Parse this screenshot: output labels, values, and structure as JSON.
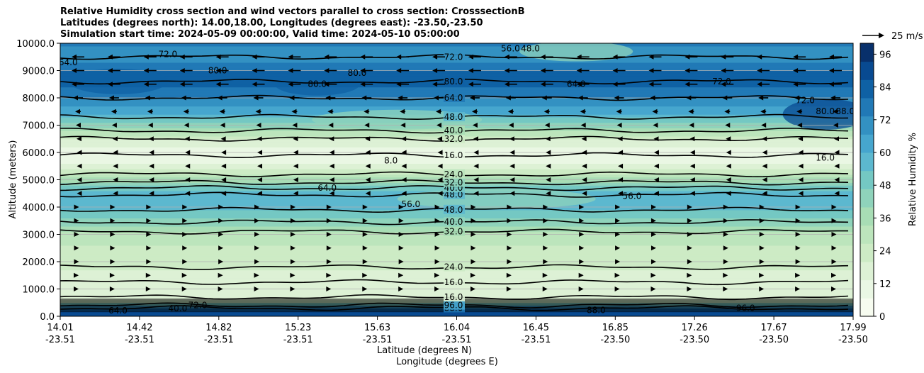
{
  "chart_data": {
    "type": "contour",
    "title_lines": [
      "Relative Humidity cross section and wind vectors parallel to cross section: CrosssectionB",
      "Latitudes (degrees north): 14.00,18.00, Longitudes (degrees east): -23.50,-23.50",
      "Simulation start time: 2024-05-09 00:00:00, Valid time: 2024-05-10 05:00:00"
    ],
    "ylabel": "Altitude (meters)",
    "xlabel_lat": "Latitude (degrees N)",
    "xlabel_lon": "Longitude (degrees E)",
    "ylim": [
      0,
      10000
    ],
    "y_ticks": [
      "0.0",
      "1000.0",
      "2000.0",
      "3000.0",
      "4000.0",
      "5000.0",
      "6000.0",
      "7000.0",
      "8000.0",
      "9000.0",
      "10000.0"
    ],
    "x_ticks": [
      {
        "lat": "14.01",
        "lon": "-23.51"
      },
      {
        "lat": "14.42",
        "lon": "-23.51"
      },
      {
        "lat": "14.82",
        "lon": "-23.51"
      },
      {
        "lat": "15.23",
        "lon": "-23.51"
      },
      {
        "lat": "15.63",
        "lon": "-23.51"
      },
      {
        "lat": "16.04",
        "lon": "-23.51"
      },
      {
        "lat": "16.45",
        "lon": "-23.51"
      },
      {
        "lat": "16.85",
        "lon": "-23.50"
      },
      {
        "lat": "17.26",
        "lon": "-23.50"
      },
      {
        "lat": "17.67",
        "lon": "-23.50"
      },
      {
        "lat": "17.99",
        "lon": "-23.50"
      }
    ],
    "colorbar": {
      "label": "Relative Humidity %",
      "range": [
        0,
        100
      ],
      "ticks": [
        "0",
        "12",
        "24",
        "36",
        "48",
        "60",
        "72",
        "84",
        "96"
      ],
      "colors": [
        "#f7fcf0",
        "#eaf7e4",
        "#ddf1d5",
        "#cdebc5",
        "#bce5bc",
        "#a8ddb5",
        "#8fd3bb",
        "#74c8c3",
        "#5cb8cf",
        "#46a6ce",
        "#3391c2",
        "#2179b6",
        "#0f61a4",
        "#084a91",
        "#08306b"
      ]
    },
    "vector_key": "25 m/s",
    "rh_profile": [
      {
        "alt": 0,
        "rh": 88
      },
      {
        "alt": 200,
        "rh": 95
      },
      {
        "alt": 400,
        "rh": 60
      },
      {
        "alt": 600,
        "rh": 14
      },
      {
        "alt": 1000,
        "rh": 14
      },
      {
        "alt": 1500,
        "rh": 18
      },
      {
        "alt": 2000,
        "rh": 22
      },
      {
        "alt": 2500,
        "rh": 26
      },
      {
        "alt": 3000,
        "rh": 32
      },
      {
        "alt": 3500,
        "rh": 44
      },
      {
        "alt": 4000,
        "rh": 56
      },
      {
        "alt": 4500,
        "rh": 60
      },
      {
        "alt": 5000,
        "rh": 36
      },
      {
        "alt": 5500,
        "rh": 14
      },
      {
        "alt": 6000,
        "rh": 8
      },
      {
        "alt": 6500,
        "rh": 20
      },
      {
        "alt": 7000,
        "rh": 44
      },
      {
        "alt": 7500,
        "rh": 62
      },
      {
        "alt": 8000,
        "rh": 74
      },
      {
        "alt": 8500,
        "rh": 82
      },
      {
        "alt": 9000,
        "rh": 80
      },
      {
        "alt": 9500,
        "rh": 70
      },
      {
        "alt": 10000,
        "rh": 74
      }
    ],
    "contour_levels": [
      {
        "alt": 300,
        "label": "88.0"
      },
      {
        "alt": 400,
        "label": "96.0"
      },
      {
        "alt": 700,
        "label": "16.0"
      },
      {
        "alt": 1250,
        "label": "16.0"
      },
      {
        "alt": 1800,
        "label": "24.0"
      },
      {
        "alt": 3100,
        "label": "32.0"
      },
      {
        "alt": 3450,
        "label": "40.0"
      },
      {
        "alt": 3900,
        "label": "48.0"
      },
      {
        "alt": 4450,
        "label": "48.0"
      },
      {
        "alt": 4700,
        "label": "40.0"
      },
      {
        "alt": 4900,
        "label": "32.0"
      },
      {
        "alt": 5200,
        "label": "24.0"
      },
      {
        "alt": 5900,
        "label": "16.0"
      },
      {
        "alt": 6500,
        "label": "32.0"
      },
      {
        "alt": 6800,
        "label": "40.0"
      },
      {
        "alt": 7300,
        "label": "48.0"
      },
      {
        "alt": 8000,
        "label": "64.0"
      },
      {
        "alt": 8600,
        "label": "80.0"
      },
      {
        "alt": 9500,
        "label": "72.0"
      }
    ],
    "inline_labels": [
      {
        "lat": 14.05,
        "alt": 9200,
        "label": "64.0"
      },
      {
        "lat": 14.55,
        "alt": 9500,
        "label": "72.0"
      },
      {
        "lat": 14.8,
        "alt": 8900,
        "label": "80.0"
      },
      {
        "lat": 15.5,
        "alt": 8800,
        "label": "80.0"
      },
      {
        "lat": 15.3,
        "alt": 8400,
        "label": "80.0"
      },
      {
        "lat": 16.27,
        "alt": 9700,
        "label": "56.0"
      },
      {
        "lat": 16.37,
        "alt": 9700,
        "label": "48.0"
      },
      {
        "lat": 16.6,
        "alt": 8400,
        "label": "64.0"
      },
      {
        "lat": 17.33,
        "alt": 8500,
        "label": "72.0"
      },
      {
        "lat": 17.75,
        "alt": 7800,
        "label": "72.0"
      },
      {
        "lat": 17.85,
        "alt": 7400,
        "label": "80.0"
      },
      {
        "lat": 17.95,
        "alt": 7400,
        "label": "88.0"
      },
      {
        "lat": 17.85,
        "alt": 5700,
        "label": "16.0"
      },
      {
        "lat": 15.67,
        "alt": 5600,
        "label": "8.0"
      },
      {
        "lat": 15.35,
        "alt": 4600,
        "label": "64.0"
      },
      {
        "lat": 15.77,
        "alt": 4000,
        "label": "56.0"
      },
      {
        "lat": 16.88,
        "alt": 4300,
        "label": "56.0"
      },
      {
        "lat": 14.3,
        "alt": 100,
        "label": "64.0"
      },
      {
        "lat": 14.6,
        "alt": 180,
        "label": "40.0"
      },
      {
        "lat": 14.7,
        "alt": 300,
        "label": "72.0"
      },
      {
        "lat": 16.7,
        "alt": 120,
        "label": "88.0"
      },
      {
        "lat": 17.45,
        "alt": 200,
        "label": "96.0"
      }
    ],
    "wind_rows": [
      {
        "alt": 9500,
        "dir": -1,
        "speed": 18
      },
      {
        "alt": 9000,
        "dir": -1,
        "speed": 18
      },
      {
        "alt": 8500,
        "dir": -1,
        "speed": 18
      },
      {
        "alt": 8000,
        "dir": -1,
        "speed": 14
      },
      {
        "alt": 7500,
        "dir": -1,
        "speed": 8
      },
      {
        "alt": 7000,
        "dir": -1,
        "speed": 6
      },
      {
        "alt": 6500,
        "dir": -1,
        "speed": 4
      },
      {
        "alt": 6000,
        "dir": -1,
        "speed": 3
      },
      {
        "alt": 5500,
        "dir": -1,
        "speed": 3
      },
      {
        "alt": 5000,
        "dir": -1,
        "speed": 3
      },
      {
        "alt": 4500,
        "dir": -1,
        "speed": 3
      },
      {
        "alt": 4000,
        "dir": 1,
        "speed": 3
      },
      {
        "alt": 3500,
        "dir": 1,
        "speed": 3
      },
      {
        "alt": 3000,
        "dir": 1,
        "speed": 3
      },
      {
        "alt": 2500,
        "dir": 1,
        "speed": 3
      },
      {
        "alt": 2000,
        "dir": 1,
        "speed": 3
      },
      {
        "alt": 1500,
        "dir": 1,
        "speed": 2
      },
      {
        "alt": 1000,
        "dir": 1,
        "speed": 2
      }
    ]
  }
}
